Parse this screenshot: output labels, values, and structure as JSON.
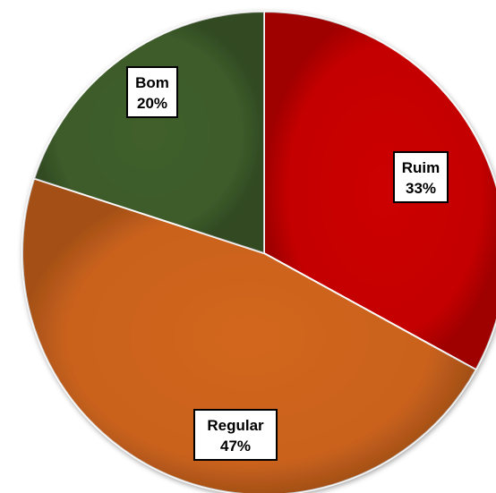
{
  "chart_data": {
    "type": "pie",
    "title": "",
    "start_angle_deg": 0,
    "direction": "clockwise",
    "slices": [
      {
        "name": "Ruim",
        "value": 33,
        "label": "33%",
        "color": "#cc0000"
      },
      {
        "name": "Regular",
        "value": 47,
        "label": "47%",
        "color": "#d2661e"
      },
      {
        "name": "Bom",
        "value": 20,
        "label": "20%",
        "color": "#3f5f2c"
      }
    ]
  }
}
